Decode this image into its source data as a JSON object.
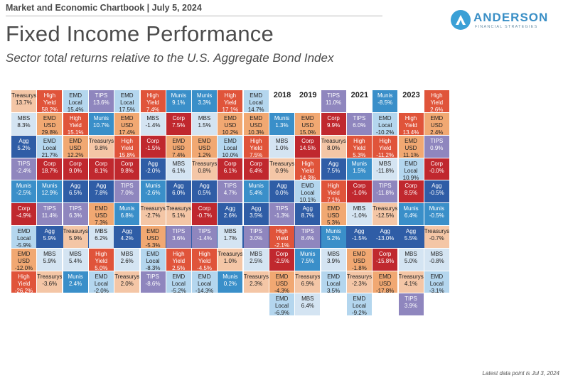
{
  "header": {
    "top_line": "Market and Economic Chartbook | July 5, 2024",
    "title": "Fixed Income Performance",
    "subtitle": "Sector total returns relative to the U.S. Aggregate Bond Index"
  },
  "logo": {
    "name": "ANDERSON",
    "tagline": "FINANCIAL STRATEGIES",
    "icon": "a-logo-icon"
  },
  "footnote": "Latest data point is Jul 3, 2024",
  "colors": {
    "Agg": "#2f5da6",
    "Treasurys": "#f4c6a6",
    "Munis": "#3a8fc9",
    "MBS": "#d4e4f2",
    "TIPS": "#8f86be",
    "Corp": "#c0282e",
    "High Yield": "#e0543a",
    "EMD USD": "#f1a872",
    "EMD Local": "#b4d6ee"
  },
  "chart_data": {
    "type": "table",
    "title": "Fixed Income Performance",
    "subtitle": "Sector total returns relative to the U.S. Aggregate Bond Index",
    "years": [
      "2008",
      "2009",
      "2010",
      "2011",
      "2012",
      "2013",
      "2014",
      "2015",
      "2016",
      "2017",
      "2018",
      "2019",
      "2020",
      "2021",
      "2022",
      "2023",
      "2024"
    ],
    "columns": [
      {
        "year": "2008",
        "agg_index": 6,
        "cells": [
          {
            "sector": "Treasurys",
            "value": "13.7%"
          },
          {
            "sector": "MBS",
            "value": "8.3%"
          },
          {
            "sector": "Agg",
            "value": "5.2%"
          },
          {
            "sector": "TIPS",
            "value": "-2.4%"
          },
          {
            "sector": "Munis",
            "value": "-2.5%"
          },
          {
            "sector": "Corp",
            "value": "-4.9%"
          },
          {
            "sector": "EMD Local",
            "value": "-5.9%"
          },
          {
            "sector": "EMD USD",
            "value": "-12.0%"
          },
          {
            "sector": "High Yield",
            "value": "-26.2%"
          }
        ]
      },
      {
        "year": "2009",
        "agg_index": 6,
        "cells": [
          {
            "sector": "High Yield",
            "value": "58.2%"
          },
          {
            "sector": "EMD USD",
            "value": "29.8%"
          },
          {
            "sector": "EMD Local",
            "value": "21.7%"
          },
          {
            "sector": "Corp",
            "value": "18.7%"
          },
          {
            "sector": "Munis",
            "value": "12.9%"
          },
          {
            "sector": "TIPS",
            "value": "11.4%"
          },
          {
            "sector": "Agg",
            "value": "5.9%"
          },
          {
            "sector": "MBS",
            "value": "5.9%"
          },
          {
            "sector": "Treasurys",
            "value": "-3.6%"
          }
        ]
      },
      {
        "year": "2010",
        "agg_index": 6,
        "cells": [
          {
            "sector": "EMD Local",
            "value": "15.4%"
          },
          {
            "sector": "High Yield",
            "value": "15.1%"
          },
          {
            "sector": "EMD USD",
            "value": "12.2%"
          },
          {
            "sector": "Corp",
            "value": "9.0%"
          },
          {
            "sector": "Agg",
            "value": "6.5%"
          },
          {
            "sector": "TIPS",
            "value": "6.3%"
          },
          {
            "sector": "Treasurys",
            "value": "5.9%"
          },
          {
            "sector": "MBS",
            "value": "5.4%"
          },
          {
            "sector": "Munis",
            "value": "2.4%"
          }
        ]
      },
      {
        "year": "2011",
        "agg_index": 6,
        "cells": [
          {
            "sector": "TIPS",
            "value": "13.6%"
          },
          {
            "sector": "Munis",
            "value": "10.7%"
          },
          {
            "sector": "Treasurys",
            "value": "9.8%"
          },
          {
            "sector": "Corp",
            "value": "8.1%"
          },
          {
            "sector": "Agg",
            "value": "7.8%"
          },
          {
            "sector": "EMD USD",
            "value": "7.3%"
          },
          {
            "sector": "MBS",
            "value": "6.2%"
          },
          {
            "sector": "High Yield",
            "value": "5.0%"
          },
          {
            "sector": "EMD Local",
            "value": "-2.0%"
          }
        ]
      },
      {
        "year": "2012",
        "agg_index": 6,
        "cells": [
          {
            "sector": "EMD Local",
            "value": "17.5%"
          },
          {
            "sector": "EMD USD",
            "value": "17.4%"
          },
          {
            "sector": "High Yield",
            "value": "15.8%"
          },
          {
            "sector": "Corp",
            "value": "9.8%"
          },
          {
            "sector": "TIPS",
            "value": "7.0%"
          },
          {
            "sector": "Munis",
            "value": "6.8%"
          },
          {
            "sector": "Agg",
            "value": "4.2%"
          },
          {
            "sector": "MBS",
            "value": "2.6%"
          },
          {
            "sector": "Treasurys",
            "value": "2.0%"
          }
        ]
      },
      {
        "year": "2013",
        "agg_index": 6,
        "cells": [
          {
            "sector": "High Yield",
            "value": "7.4%"
          },
          {
            "sector": "MBS",
            "value": "-1.4%"
          },
          {
            "sector": "Corp",
            "value": "-1.5%"
          },
          {
            "sector": "Agg",
            "value": "-2.0%"
          },
          {
            "sector": "Munis",
            "value": "-2.6%"
          },
          {
            "sector": "Treasurys",
            "value": "-2.7%"
          },
          {
            "sector": "EMD USD",
            "value": "-5.3%"
          },
          {
            "sector": "EMD Local",
            "value": "-8.3%"
          },
          {
            "sector": "TIPS",
            "value": "-8.6%"
          }
        ]
      },
      {
        "year": "2014",
        "agg_index": 6,
        "cells": [
          {
            "sector": "Munis",
            "value": "9.1%"
          },
          {
            "sector": "Corp",
            "value": "7.5%"
          },
          {
            "sector": "EMD USD",
            "value": "7.4%"
          },
          {
            "sector": "MBS",
            "value": "6.1%"
          },
          {
            "sector": "Agg",
            "value": "6.0%"
          },
          {
            "sector": "Treasurys",
            "value": "5.1%"
          },
          {
            "sector": "TIPS",
            "value": "3.6%"
          },
          {
            "sector": "High Yield",
            "value": "2.5%"
          },
          {
            "sector": "EMD Local",
            "value": "-5.2%"
          }
        ]
      },
      {
        "year": "2015",
        "agg_index": 6,
        "cells": [
          {
            "sector": "Munis",
            "value": "3.3%"
          },
          {
            "sector": "MBS",
            "value": "1.5%"
          },
          {
            "sector": "EMD USD",
            "value": "1.2%"
          },
          {
            "sector": "Treasurys",
            "value": "0.8%"
          },
          {
            "sector": "Agg",
            "value": "0.5%"
          },
          {
            "sector": "Corp",
            "value": "-0.7%"
          },
          {
            "sector": "TIPS",
            "value": "-1.4%"
          },
          {
            "sector": "High Yield",
            "value": "-4.5%"
          },
          {
            "sector": "EMD Local",
            "value": "-14.3%"
          }
        ]
      },
      {
        "year": "2016",
        "agg_index": 6,
        "cells": [
          {
            "sector": "High Yield",
            "value": "17.1%"
          },
          {
            "sector": "EMD USD",
            "value": "10.2%"
          },
          {
            "sector": "EMD Local",
            "value": "10.0%"
          },
          {
            "sector": "Corp",
            "value": "6.1%"
          },
          {
            "sector": "TIPS",
            "value": "4.7%"
          },
          {
            "sector": "Agg",
            "value": "2.6%"
          },
          {
            "sector": "MBS",
            "value": "1.7%"
          },
          {
            "sector": "Treasurys",
            "value": "1.0%"
          },
          {
            "sector": "Munis",
            "value": "0.2%"
          }
        ]
      },
      {
        "year": "2017",
        "agg_index": 6,
        "cells": [
          {
            "sector": "EMD Local",
            "value": "14.7%"
          },
          {
            "sector": "EMD USD",
            "value": "10.3%"
          },
          {
            "sector": "High Yield",
            "value": "7.5%"
          },
          {
            "sector": "Corp",
            "value": "6.4%"
          },
          {
            "sector": "Munis",
            "value": "5.4%"
          },
          {
            "sector": "Agg",
            "value": "3.5%"
          },
          {
            "sector": "TIPS",
            "value": "3.0%"
          },
          {
            "sector": "MBS",
            "value": "2.5%"
          },
          {
            "sector": "Treasurys",
            "value": "2.3%"
          }
        ]
      },
      {
        "year": "2018",
        "agg_index": 5,
        "cells": [
          {
            "sector": "Munis",
            "value": "1.3%"
          },
          {
            "sector": "MBS",
            "value": "1.0%"
          },
          {
            "sector": "Treasurys",
            "value": "0.9%"
          },
          {
            "sector": "Agg",
            "value": "0.0%"
          },
          {
            "sector": "TIPS",
            "value": "-1.3%"
          },
          {
            "sector": "High Yield",
            "value": "-2.1%"
          },
          {
            "sector": "Corp",
            "value": "-2.5%"
          },
          {
            "sector": "EMD USD",
            "value": "-4.3%"
          },
          {
            "sector": "EMD Local",
            "value": "-6.9%"
          }
        ]
      },
      {
        "year": "2019",
        "agg_index": 5,
        "cells": [
          {
            "sector": "EMD USD",
            "value": "15.0%"
          },
          {
            "sector": "Corp",
            "value": "14.5%"
          },
          {
            "sector": "High Yield",
            "value": "14.3%"
          },
          {
            "sector": "EMD Local",
            "value": "10.1%"
          },
          {
            "sector": "Agg",
            "value": "8.7%"
          },
          {
            "sector": "TIPS",
            "value": "8.4%"
          },
          {
            "sector": "Munis",
            "value": "7.5%"
          },
          {
            "sector": "Treasurys",
            "value": "6.9%"
          },
          {
            "sector": "MBS",
            "value": "6.4%"
          }
        ]
      },
      {
        "year": "2020",
        "agg_index": 6,
        "cells": [
          {
            "sector": "TIPS",
            "value": "11.0%"
          },
          {
            "sector": "Corp",
            "value": "9.9%"
          },
          {
            "sector": "Treasurys",
            "value": "8.0%"
          },
          {
            "sector": "Agg",
            "value": "7.5%"
          },
          {
            "sector": "High Yield",
            "value": "7.1%"
          },
          {
            "sector": "EMD USD",
            "value": "5.3%"
          },
          {
            "sector": "Munis",
            "value": "5.2%"
          },
          {
            "sector": "MBS",
            "value": "3.9%"
          },
          {
            "sector": "EMD Local",
            "value": "3.5%"
          }
        ]
      },
      {
        "year": "2021",
        "agg_index": 5,
        "cells": [
          {
            "sector": "TIPS",
            "value": "6.0%"
          },
          {
            "sector": "High Yield",
            "value": "5.3%"
          },
          {
            "sector": "Munis",
            "value": "1.5%"
          },
          {
            "sector": "Corp",
            "value": "-1.0%"
          },
          {
            "sector": "MBS",
            "value": "-1.0%"
          },
          {
            "sector": "Agg",
            "value": "-1.5%"
          },
          {
            "sector": "EMD USD",
            "value": "-1.8%"
          },
          {
            "sector": "Treasurys",
            "value": "-2.3%"
          },
          {
            "sector": "EMD Local",
            "value": "-9.2%"
          }
        ]
      },
      {
        "year": "2022",
        "agg_index": 6,
        "cells": [
          {
            "sector": "Munis",
            "value": "-8.5%"
          },
          {
            "sector": "EMD Local",
            "value": "-10.2%"
          },
          {
            "sector": "High Yield",
            "value": "-11.2%"
          },
          {
            "sector": "MBS",
            "value": "-11.8%"
          },
          {
            "sector": "TIPS",
            "value": "-11.8%"
          },
          {
            "sector": "Treasurys",
            "value": "-12.5%"
          },
          {
            "sector": "Agg",
            "value": "-13.0%"
          },
          {
            "sector": "Corp",
            "value": "-15.8%"
          },
          {
            "sector": "EMD USD",
            "value": "-17.8%"
          }
        ]
      },
      {
        "year": "2023",
        "agg_index": 5,
        "cells": [
          {
            "sector": "High Yield",
            "value": "13.4%"
          },
          {
            "sector": "EMD USD",
            "value": "11.1%"
          },
          {
            "sector": "EMD Local",
            "value": "10.9%"
          },
          {
            "sector": "Corp",
            "value": "8.5%"
          },
          {
            "sector": "Munis",
            "value": "6.4%"
          },
          {
            "sector": "Agg",
            "value": "5.5%"
          },
          {
            "sector": "MBS",
            "value": "5.0%"
          },
          {
            "sector": "Treasurys",
            "value": "4.1%"
          },
          {
            "sector": "TIPS",
            "value": "3.9%"
          }
        ]
      },
      {
        "year": "2024",
        "agg_index": 6,
        "cells": [
          {
            "sector": "High Yield",
            "value": "2.6%"
          },
          {
            "sector": "EMD USD",
            "value": "2.4%"
          },
          {
            "sector": "TIPS",
            "value": "0.9%"
          },
          {
            "sector": "Corp",
            "value": "-0.0%"
          },
          {
            "sector": "Agg",
            "value": "-0.5%"
          },
          {
            "sector": "Munis",
            "value": "-0.5%"
          },
          {
            "sector": "Treasurys",
            "value": "-0.7%"
          },
          {
            "sector": "MBS",
            "value": "-0.8%"
          },
          {
            "sector": "EMD Local",
            "value": "-3.1%"
          }
        ]
      }
    ]
  }
}
